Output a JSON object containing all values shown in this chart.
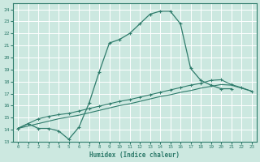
{
  "xlabel": "Humidex (Indice chaleur)",
  "xlim": [
    -0.5,
    23.5
  ],
  "ylim": [
    13,
    24.5
  ],
  "xticks": [
    0,
    1,
    2,
    3,
    4,
    5,
    6,
    7,
    8,
    9,
    10,
    11,
    12,
    13,
    14,
    15,
    16,
    17,
    18,
    19,
    20,
    21,
    22,
    23
  ],
  "yticks": [
    13,
    14,
    15,
    16,
    17,
    18,
    19,
    20,
    21,
    22,
    23,
    24
  ],
  "bg_color": "#cce8e0",
  "grid_color": "#ffffff",
  "line_color": "#2e7b6b",
  "line1_x": [
    0,
    1,
    2,
    3,
    4,
    5,
    6,
    7,
    8,
    9,
    10,
    11,
    12,
    13,
    14,
    15,
    16,
    17,
    18,
    19,
    20,
    21
  ],
  "line1_y": [
    14.1,
    14.5,
    14.1,
    14.1,
    13.9,
    13.2,
    14.2,
    16.2,
    18.8,
    21.2,
    21.5,
    22.0,
    22.8,
    23.6,
    23.85,
    23.85,
    22.8,
    19.1,
    18.1,
    17.7,
    17.4,
    17.4
  ],
  "line2_x": [
    0,
    1,
    2,
    3,
    4,
    5,
    6,
    7,
    8,
    9,
    10,
    11,
    12,
    13,
    14,
    15,
    16,
    17,
    18,
    19,
    20,
    21,
    22,
    23
  ],
  "line2_y": [
    14.1,
    14.5,
    14.9,
    15.1,
    15.25,
    15.35,
    15.55,
    15.75,
    15.95,
    16.15,
    16.35,
    16.5,
    16.7,
    16.9,
    17.1,
    17.3,
    17.5,
    17.7,
    17.85,
    18.1,
    18.15,
    17.75,
    17.5,
    17.2
  ],
  "line3_x": [
    0,
    1,
    2,
    3,
    4,
    5,
    6,
    7,
    8,
    9,
    10,
    11,
    12,
    13,
    14,
    15,
    16,
    17,
    18,
    19,
    20,
    21,
    22,
    23
  ],
  "line3_y": [
    14.1,
    14.3,
    14.5,
    14.7,
    14.9,
    15.05,
    15.2,
    15.4,
    15.6,
    15.8,
    16.0,
    16.15,
    16.35,
    16.55,
    16.75,
    16.9,
    17.1,
    17.25,
    17.45,
    17.6,
    17.75,
    17.7,
    17.45,
    17.2
  ]
}
